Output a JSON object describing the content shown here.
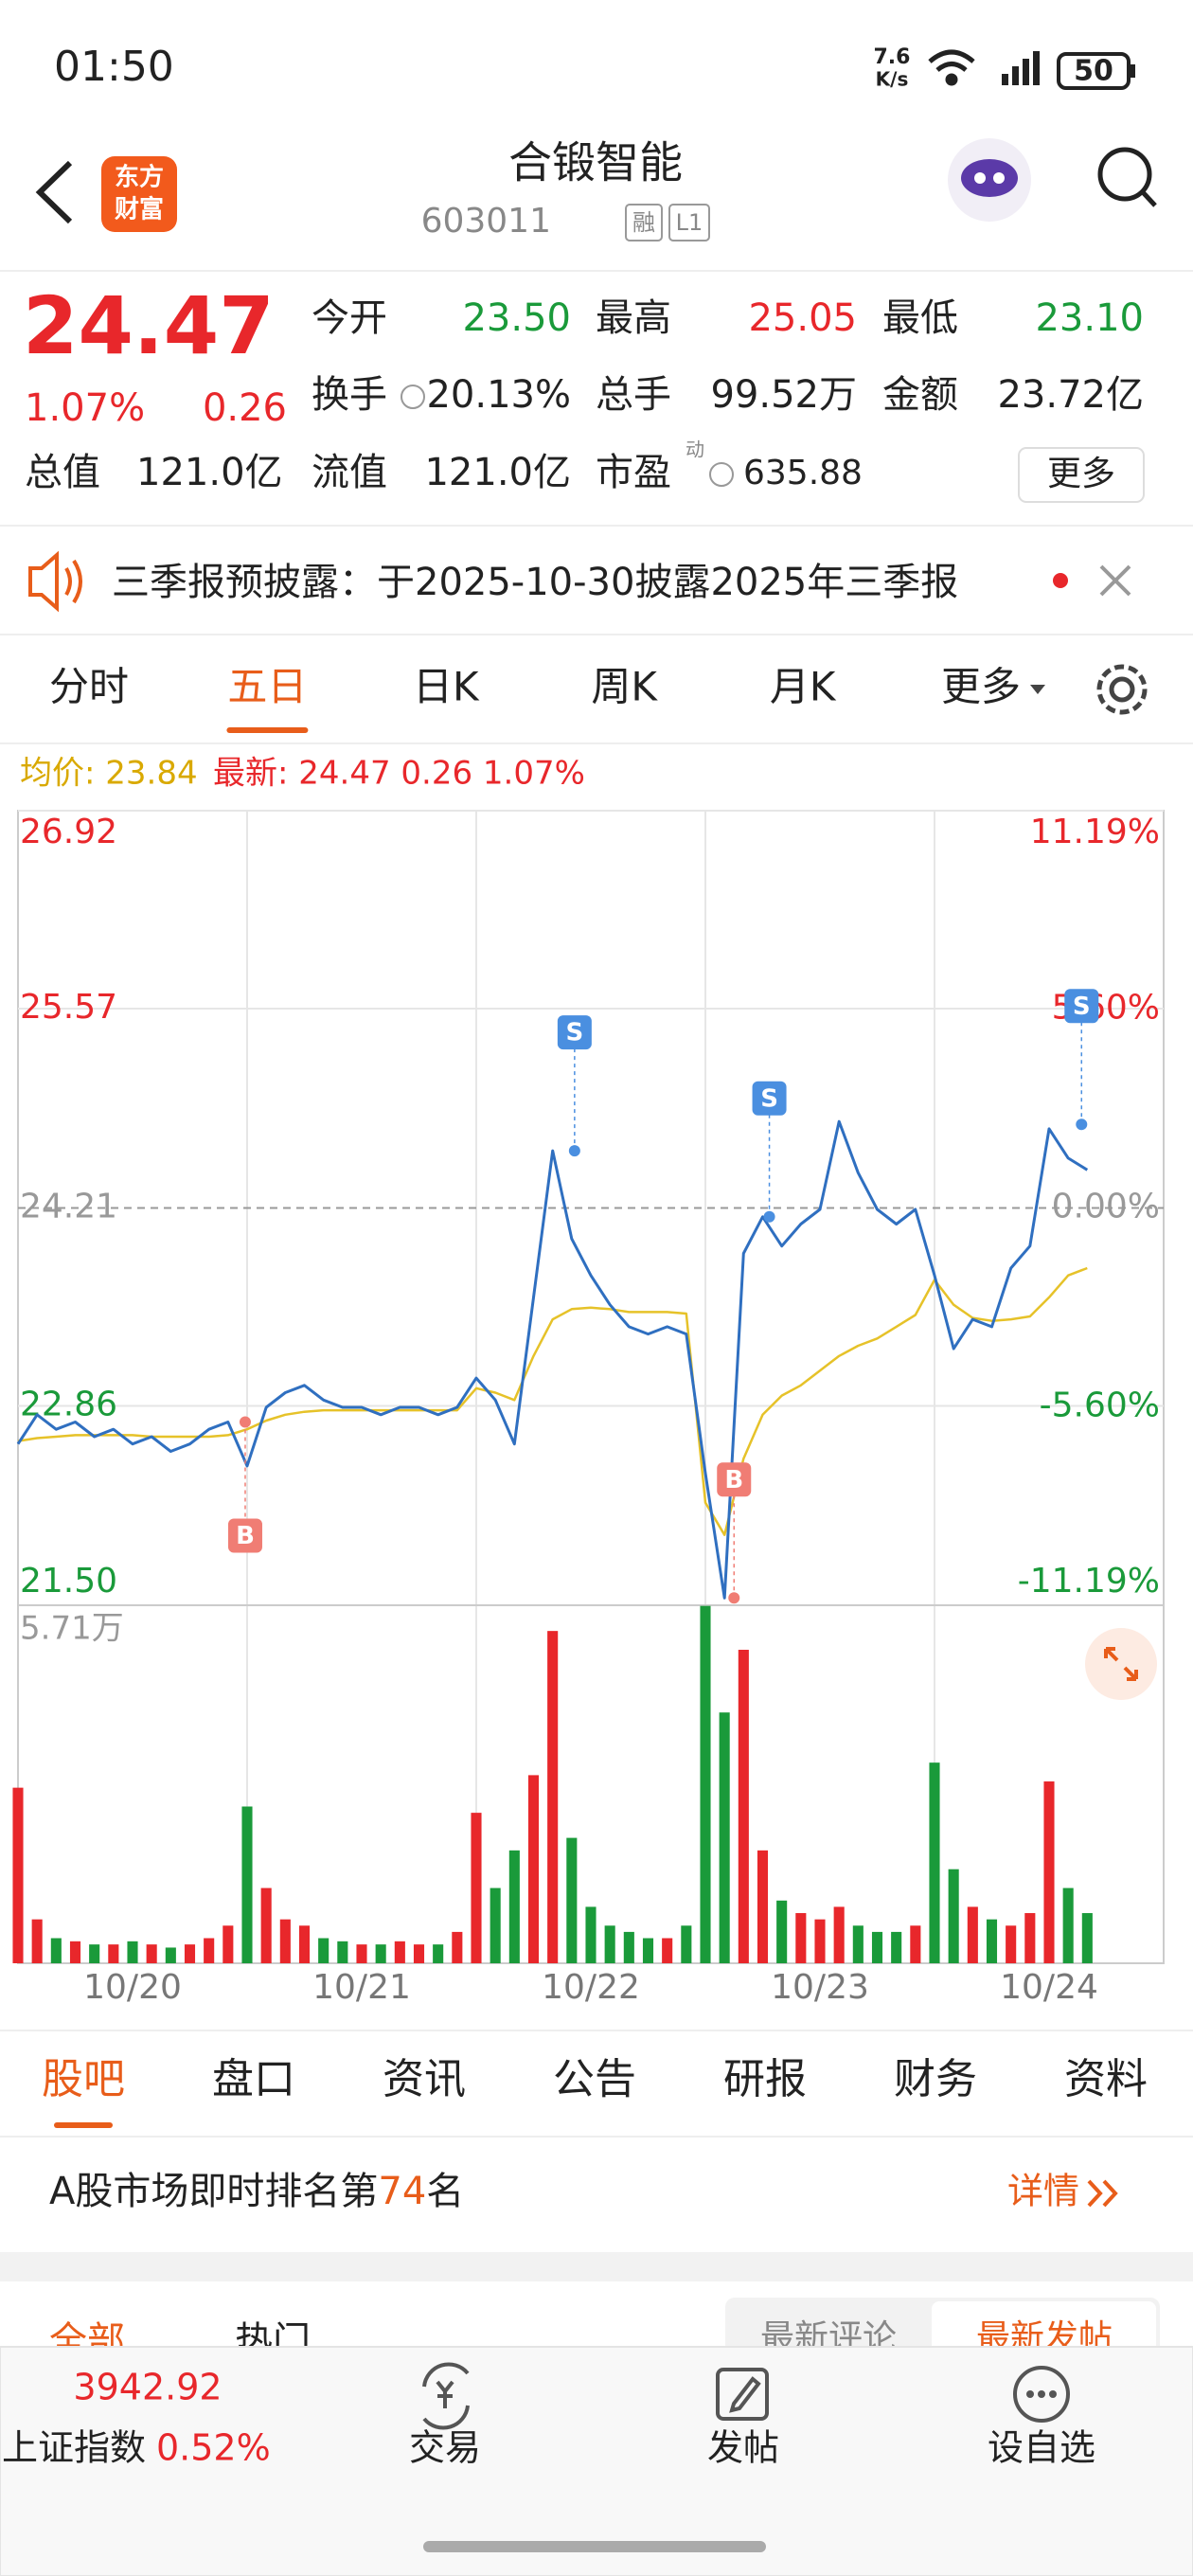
{
  "status_bar": {
    "time": "01:50",
    "speed": "7.6",
    "speed_unit": "K/s",
    "battery": "50"
  },
  "header": {
    "logo_top": "东方",
    "logo_bottom": "财富",
    "title": "合锻智能",
    "code": "603011",
    "badges": [
      "融",
      "L1"
    ]
  },
  "quote": {
    "price": "24.47",
    "change_pct": "1.07%",
    "change": "0.26",
    "fields": [
      {
        "label": "今开",
        "value": "23.50"
      },
      {
        "label": "最高",
        "value": "25.05"
      },
      {
        "label": "最低",
        "value": "23.10"
      },
      {
        "label": "换手",
        "value": "20.13%"
      },
      {
        "label": "总手",
        "value": "99.52万"
      },
      {
        "label": "金额",
        "value": "23.72亿"
      },
      {
        "label": "总值",
        "value": "121.0亿"
      },
      {
        "label": "流值",
        "value": "121.0亿"
      },
      {
        "label": "市盈",
        "sup": "动",
        "value": "635.88"
      }
    ],
    "more": "更多"
  },
  "notice": "三季报预披露：于2025-10-30披露2025年三季报",
  "chart_tabs": {
    "items": [
      "分时",
      "五日",
      "日K",
      "周K",
      "月K",
      "更多"
    ],
    "active": 1
  },
  "chart_data": {
    "type": "line",
    "legend": {
      "avg": "均价: 23.84",
      "latest": "最新: 24.47 0.26 1.07%"
    },
    "x": [
      0,
      20,
      40,
      60,
      80,
      100,
      120,
      140,
      160,
      180,
      200,
      220,
      240,
      260,
      280,
      300,
      320,
      340,
      360,
      380,
      400,
      420,
      440,
      460,
      480,
      500,
      520,
      540,
      560,
      580,
      600,
      620,
      640,
      660,
      680,
      700,
      720,
      740,
      760,
      780,
      800,
      820,
      840,
      860,
      880,
      900,
      920,
      940,
      960,
      980,
      1000,
      1020,
      1040,
      1060,
      1080,
      1100,
      1120
    ],
    "xlim": [
      0,
      1200
    ],
    "xticks": [
      {
        "value": 120,
        "label": "10/20"
      },
      {
        "value": 360,
        "label": "10/21"
      },
      {
        "value": 600,
        "label": "10/22"
      },
      {
        "value": 840,
        "label": "10/23"
      },
      {
        "value": 1080,
        "label": "10/24"
      }
    ],
    "ylim": [
      21.5,
      26.92
    ],
    "yticks": [
      26.92,
      25.57,
      24.21,
      22.86,
      {
        "value": 21.5,
        "label": "21.50"
      }
    ],
    "y2lim": [
      -11.19,
      11.19
    ],
    "y2ticks": [
      {
        "value": 11.19,
        "label": "11.19%"
      },
      {
        "value": 5.6,
        "label": "5.60%"
      },
      {
        "value": 0,
        "label": "0.00%"
      },
      {
        "value": -5.6,
        "label": "-5.60%"
      },
      {
        "value": -11.19,
        "label": "-11.19%"
      }
    ],
    "prev_close": 24.21,
    "grid": true,
    "series": [
      {
        "color": "#2f6fc0",
        "values": [
          22.6,
          22.8,
          22.7,
          22.75,
          22.65,
          22.7,
          22.6,
          22.65,
          22.55,
          22.6,
          22.7,
          22.75,
          22.45,
          22.85,
          22.95,
          23.0,
          22.9,
          22.85,
          22.85,
          22.8,
          22.85,
          22.85,
          22.8,
          22.85,
          23.05,
          22.9,
          22.6,
          23.6,
          24.6,
          24.0,
          23.75,
          23.55,
          23.4,
          23.35,
          23.4,
          23.35,
          22.4,
          21.55,
          23.9,
          24.15,
          23.95,
          24.1,
          24.2,
          24.8,
          24.45,
          24.2,
          24.1,
          24.2,
          23.75,
          23.25,
          23.45,
          23.4,
          23.8,
          23.95,
          24.75,
          24.55,
          24.47
        ]
      },
      {
        "color": "#e6c229",
        "values": [
          22.62,
          22.64,
          22.65,
          22.66,
          22.66,
          22.66,
          22.66,
          22.65,
          22.65,
          22.65,
          22.65,
          22.66,
          22.7,
          22.76,
          22.8,
          22.82,
          22.83,
          22.83,
          22.83,
          22.83,
          22.83,
          22.83,
          22.83,
          22.83,
          22.98,
          22.95,
          22.9,
          23.2,
          23.45,
          23.52,
          23.53,
          23.52,
          23.5,
          23.5,
          23.5,
          23.49,
          22.2,
          21.98,
          22.5,
          22.8,
          22.93,
          23.0,
          23.1,
          23.2,
          23.27,
          23.32,
          23.4,
          23.48,
          23.72,
          23.55,
          23.46,
          23.44,
          23.45,
          23.47,
          23.6,
          23.75,
          23.8
        ]
      }
    ],
    "volume": {
      "ylim": [
        0,
        57100
      ],
      "yticks": [
        {
          "value": 57100,
          "label": "5.71万"
        }
      ],
      "up_color": "#e8272b",
      "down_color": "#1a9a3a",
      "values": [
        28000,
        7000,
        4000,
        3500,
        3000,
        3000,
        3500,
        3000,
        2500,
        3000,
        4000,
        6000,
        25000,
        12000,
        7000,
        6000,
        4000,
        3500,
        3000,
        3000,
        3500,
        3000,
        3000,
        5000,
        24000,
        12000,
        18000,
        30000,
        53000,
        20000,
        9000,
        6000,
        5000,
        4000,
        4000,
        6000,
        57000,
        40000,
        50000,
        18000,
        10000,
        8000,
        7000,
        9000,
        6000,
        5000,
        5000,
        6000,
        32000,
        15000,
        9000,
        7000,
        6000,
        8000,
        29000,
        12000,
        8000
      ]
    },
    "trade_marks": [
      {
        "label": "B",
        "x": 238,
        "price": 22.75,
        "color": "#f07d74"
      },
      {
        "label": "S",
        "x": 583,
        "price": 24.6,
        "color": "#4a8fe0"
      },
      {
        "label": "B",
        "x": 750,
        "price": 21.55,
        "color": "#f07d74"
      },
      {
        "label": "S",
        "x": 787,
        "price": 24.15,
        "color": "#4a8fe0"
      },
      {
        "label": "S",
        "x": 1114,
        "price": 24.78,
        "color": "#4a8fe0"
      }
    ]
  },
  "info_tabs": {
    "items": [
      "股吧",
      "盘口",
      "资讯",
      "公告",
      "研报",
      "财务",
      "资料"
    ],
    "active": 0
  },
  "ranking": {
    "prefix": "A股市场即时排名第",
    "rank": "74",
    "suffix": "名",
    "link": "详情"
  },
  "feed_tabs": [
    "全部",
    "热门"
  ],
  "sort_tabs": [
    "最新评论",
    "最新发帖"
  ],
  "bottom_bar": {
    "index_value": "3942.92",
    "index_name": "上证指数",
    "index_change": "0.52%",
    "actions": [
      "交易",
      "发帖",
      "设自选"
    ]
  }
}
